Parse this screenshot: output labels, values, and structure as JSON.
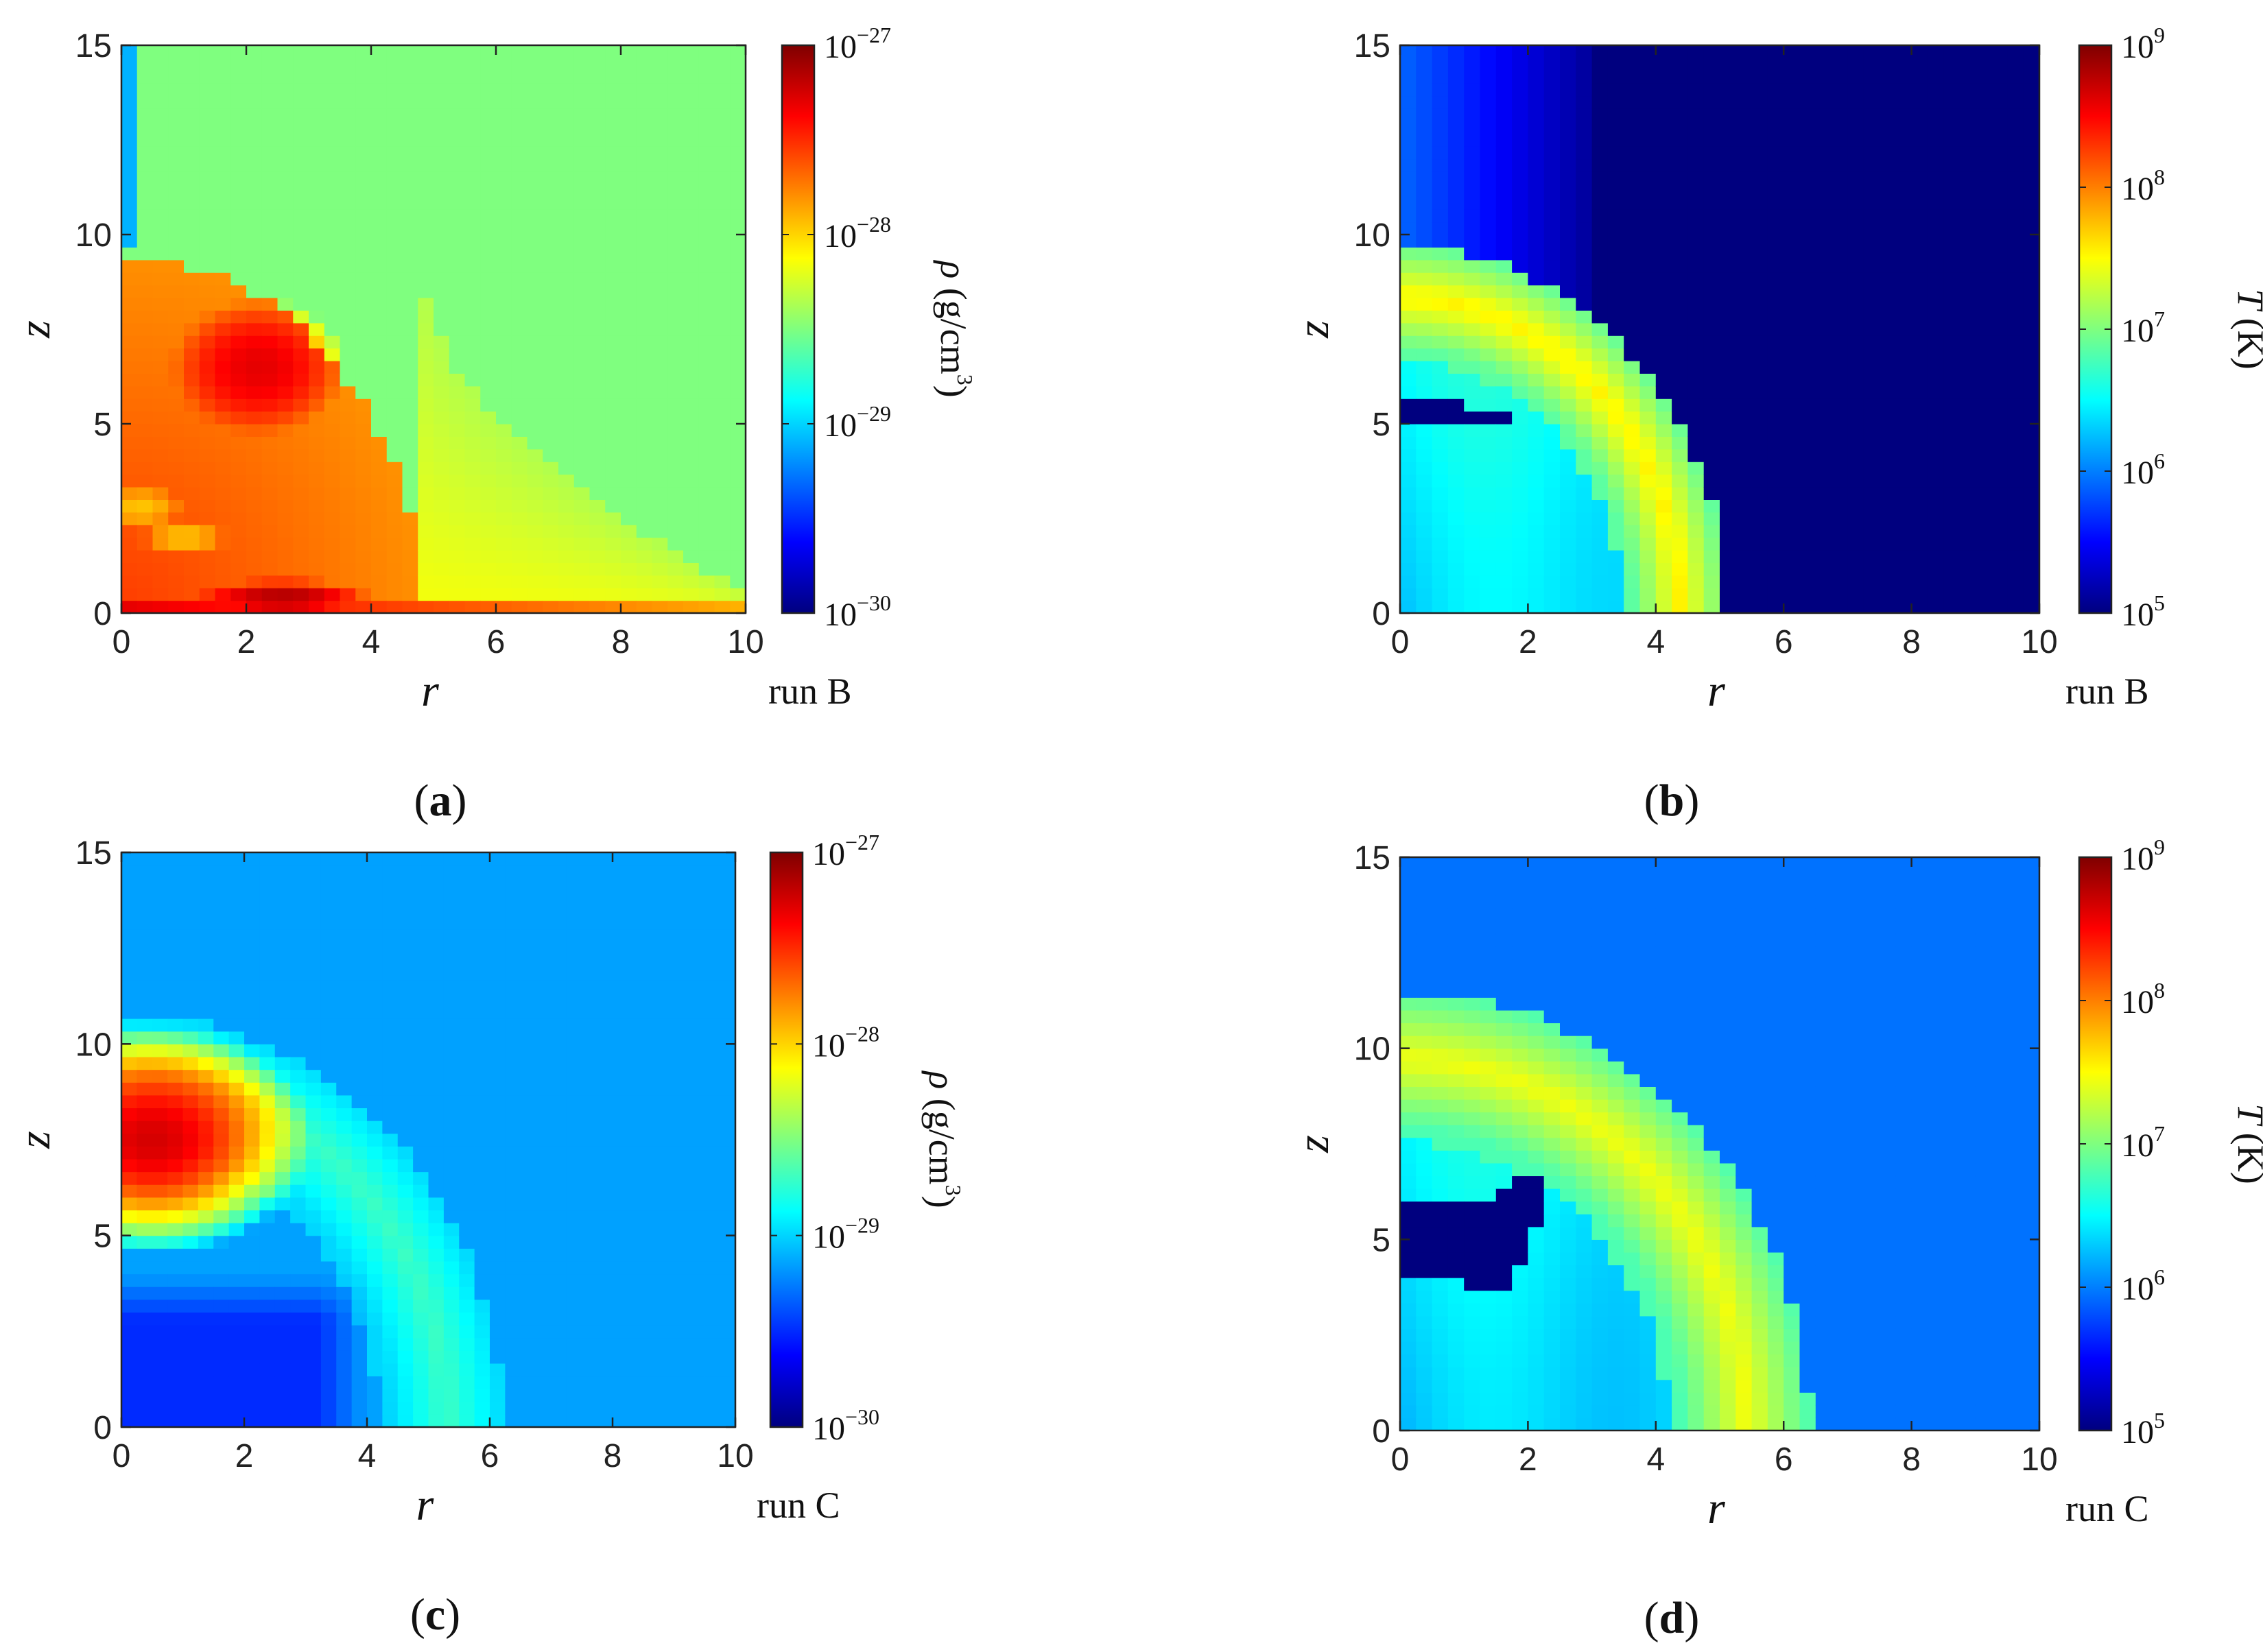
{
  "colors": {
    "jet_map": [
      "#00007f",
      "#0000ff",
      "#007fff",
      "#00ffff",
      "#7fff7f",
      "#ffff00",
      "#ff7f00",
      "#ff0000",
      "#7f0000"
    ],
    "axis": "#222222",
    "background": "#ffffff"
  },
  "chart_data": [
    {
      "type": "heatmap",
      "panel_label": "a",
      "run_label": "run B",
      "xlabel": "r",
      "ylabel": "z",
      "xlim": [
        0,
        10
      ],
      "ylim": [
        0,
        15
      ],
      "xticks": [
        "0",
        "2",
        "4",
        "6",
        "8",
        "10"
      ],
      "yticks": [
        "0",
        "5",
        "10",
        "15"
      ],
      "colorbar": {
        "label_symbol": "ρ",
        "label_unit": "(g/cm",
        "label_unit_sup": "3",
        "label_close": ")",
        "scale": "log",
        "range": [
          1e-30,
          1e-27
        ],
        "ticks": [
          {
            "base": "10",
            "exp": "−30"
          },
          {
            "base": "10",
            "exp": "−29"
          },
          {
            "base": "10",
            "exp": "−28"
          },
          {
            "base": "10",
            "exp": "−27"
          }
        ]
      },
      "field": {
        "background_log": -28.5,
        "axis_column": {
          "r_max": 0.25,
          "z_min": 9.5,
          "value_log": -29.1
        },
        "features": [
          {
            "kind": "shocked_region",
            "r_max": 4.8,
            "z_max": 9.4,
            "value_log": -27.55
          },
          {
            "kind": "blob",
            "r": 2.2,
            "z": 6.5,
            "rr": 1.4,
            "rz": 1.8,
            "value_log": -27.3
          },
          {
            "kind": "blob",
            "r": 0.3,
            "z": 2.8,
            "rr": 0.7,
            "rz": 0.6,
            "value_log": -27.95
          },
          {
            "kind": "blob",
            "r": 1.0,
            "z": 2.0,
            "rr": 0.7,
            "rz": 0.5,
            "value_log": -27.95
          },
          {
            "kind": "blob",
            "r": 2.6,
            "z": 0.4,
            "rr": 1.4,
            "rz": 0.5,
            "value_log": -27.15
          },
          {
            "kind": "disk_tail",
            "r_from": 0,
            "r_to": 10,
            "z_height": 0.5,
            "value_log": -27.75
          },
          {
            "kind": "wedge",
            "r_from": 4.8,
            "r_to": 10,
            "z_top_start": 9.4,
            "z_top_end": 0.6,
            "value_log": -28.15
          }
        ]
      }
    },
    {
      "type": "heatmap",
      "panel_label": "b",
      "run_label": "run B",
      "xlabel": "r",
      "ylabel": "z",
      "xlim": [
        0,
        10
      ],
      "ylim": [
        0,
        15
      ],
      "xticks": [
        "0",
        "2",
        "4",
        "6",
        "8",
        "10"
      ],
      "yticks": [
        "0",
        "5",
        "10",
        "15"
      ],
      "colorbar": {
        "label_symbol": "T",
        "label_unit": "(K)",
        "scale": "log",
        "range": [
          100000.0,
          1000000000.0
        ],
        "ticks": [
          {
            "base": "10",
            "exp": "5"
          },
          {
            "base": "10",
            "exp": "6"
          },
          {
            "base": "10",
            "exp": "7"
          },
          {
            "base": "10",
            "exp": "8"
          },
          {
            "base": "10",
            "exp": "9"
          }
        ]
      },
      "field": {
        "background_log": 5.0,
        "near_axis_band": {
          "r_max": 3.0,
          "value_log_inner": 5.9,
          "value_log_outer": 5.1
        },
        "shell": {
          "r_outer": 5.1,
          "z_outer": 9.7,
          "thickness": 1.6,
          "value_log": 7.55
        },
        "interior_log": 6.5,
        "features": [
          {
            "kind": "cold_pocket",
            "points": [
              [
                0,
                5.5
              ],
              [
                0.7,
                5.7
              ],
              [
                1.6,
                5.2
              ],
              [
                2.3,
                4.9
              ],
              [
                1.2,
                5.0
              ],
              [
                0,
                5.0
              ]
            ],
            "value_log": 5.0
          }
        ]
      }
    },
    {
      "type": "heatmap",
      "panel_label": "c",
      "run_label": "run C",
      "xlabel": "r",
      "ylabel": "z",
      "xlim": [
        0,
        10
      ],
      "ylim": [
        0,
        15
      ],
      "xticks": [
        "0",
        "2",
        "4",
        "6",
        "8",
        "10"
      ],
      "yticks": [
        "0",
        "5",
        "10",
        "15"
      ],
      "colorbar": {
        "label_symbol": "ρ",
        "label_unit": "(g/cm",
        "label_unit_sup": "3",
        "label_close": ")",
        "scale": "log",
        "range": [
          1e-30,
          1e-27
        ],
        "ticks": [
          {
            "base": "10",
            "exp": "−30"
          },
          {
            "base": "10",
            "exp": "−29"
          },
          {
            "base": "10",
            "exp": "−28"
          },
          {
            "base": "10",
            "exp": "−27"
          }
        ]
      },
      "field": {
        "background_log": -29.15,
        "shell": {
          "r_outer": 6.2,
          "z_outer": 10.8,
          "thickness": 2.0,
          "value_log": -28.7
        },
        "features": [
          {
            "kind": "blob",
            "r": 0.5,
            "z": 7.5,
            "rr": 2.6,
            "rz": 3.0,
            "value_log": -27.25
          },
          {
            "kind": "low_region",
            "r_min": 0,
            "r_max": 4.0,
            "z_max": 4.0,
            "value_log": -29.5
          }
        ]
      }
    },
    {
      "type": "heatmap",
      "panel_label": "d",
      "run_label": "run C",
      "xlabel": "r",
      "ylabel": "z",
      "xlim": [
        0,
        10
      ],
      "ylim": [
        0,
        15
      ],
      "xticks": [
        "0",
        "2",
        "4",
        "6",
        "8",
        "10"
      ],
      "yticks": [
        "0",
        "5",
        "10",
        "15"
      ],
      "colorbar": {
        "label_symbol": "T",
        "label_unit": "(K)",
        "scale": "log",
        "range": [
          100000.0,
          1000000000.0
        ],
        "ticks": [
          {
            "base": "10",
            "exp": "5"
          },
          {
            "base": "10",
            "exp": "6"
          },
          {
            "base": "10",
            "exp": "7"
          },
          {
            "base": "10",
            "exp": "8"
          },
          {
            "base": "10",
            "exp": "9"
          }
        ]
      },
      "field": {
        "background_log": 5.95,
        "shell": {
          "r_outer": 6.4,
          "z_outer": 11.5,
          "thickness": 2.2,
          "value_log": 7.45
        },
        "interior_log": 6.45,
        "features": [
          {
            "kind": "cold_pocket",
            "points": [
              [
                0,
                5.9
              ],
              [
                1.3,
                6.0
              ],
              [
                2.2,
                6.9
              ],
              [
                2.3,
                6.2
              ],
              [
                1.9,
                4.5
              ],
              [
                1.7,
                3.6
              ],
              [
                1.0,
                3.8
              ],
              [
                0.4,
                4.1
              ],
              [
                0,
                4.1
              ]
            ],
            "value_log": 5.0
          }
        ]
      }
    }
  ]
}
